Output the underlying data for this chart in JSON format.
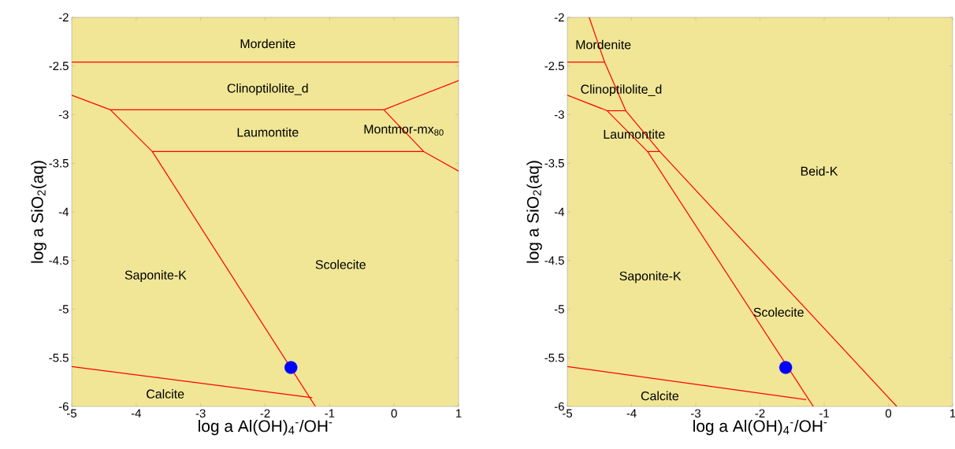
{
  "chart_data": [
    {
      "type": "line",
      "xlabel": "log a Al(OH)$_{4}$$^{-}$/OH$^{-}$",
      "ylabel": "log a SiO$_{2}$(aq)",
      "xlim": [
        -5,
        1
      ],
      "ylim": [
        -6,
        -2
      ],
      "xticks": [
        -5,
        -4,
        -3,
        -2,
        -1,
        0,
        1
      ],
      "yticks": [
        -6,
        -5.5,
        -5,
        -4.5,
        -4,
        -3.5,
        -3,
        -2.5,
        -2
      ],
      "grid": false,
      "series": [
        {
          "color": "#ff0000",
          "x": [
            -5,
            1
          ],
          "values": [
            -2.46,
            -2.46
          ]
        },
        {
          "color": "#ff0000",
          "x": [
            -5,
            -4.4,
            -0.16,
            1
          ],
          "values": [
            -2.8,
            -2.95,
            -2.95,
            -2.65
          ]
        },
        {
          "color": "#ff0000",
          "x": [
            -4.4,
            -3.75,
            -1.22
          ],
          "values": [
            -2.95,
            -3.38,
            -6
          ]
        },
        {
          "color": "#ff0000",
          "x": [
            -3.75,
            0.46
          ],
          "values": [
            -3.38,
            -3.38
          ]
        },
        {
          "color": "#ff0000",
          "x": [
            -0.16,
            0.46,
            1
          ],
          "values": [
            -2.95,
            -3.38,
            -3.58
          ]
        },
        {
          "color": "#ff0000",
          "x": [
            -5,
            -1.27
          ],
          "values": [
            -5.59,
            -5.91
          ]
        },
        {
          "type": "scatter",
          "marker": "circle",
          "color": "#0000ff",
          "x": [
            -1.6
          ],
          "values": [
            -5.6
          ]
        }
      ],
      "annotations": [
        "Mordenite",
        "Clinoptilolite_d",
        "Laumontite",
        "Montmor-mx$_{80}$",
        "Saponite-K",
        "Scolecite",
        "Calcite"
      ]
    },
    {
      "type": "line",
      "xlabel": "log a Al(OH)$_{4}$$^{-}$/OH$^{-}$",
      "ylabel": "log a SiO$_{2}$(aq)",
      "xlim": [
        -5,
        1
      ],
      "ylim": [
        -6,
        -2
      ],
      "xticks": [
        -5,
        -4,
        -3,
        -2,
        -1,
        0,
        1
      ],
      "yticks": [
        -6,
        -5.5,
        -5,
        -4.5,
        -4,
        -3.5,
        -3,
        -2.5,
        -2
      ],
      "grid": false,
      "series": [
        {
          "color": "#ff0000",
          "x": [
            -4.66,
            -4.42,
            -4.09,
            -3.56,
            0.13
          ],
          "values": [
            -2,
            -2.46,
            -2.96,
            -3.38,
            -6
          ]
        },
        {
          "color": "#ff0000",
          "x": [
            -5,
            -4.42
          ],
          "values": [
            -2.46,
            -2.46
          ]
        },
        {
          "color": "#ff0000",
          "x": [
            -5,
            -4.38,
            -3.75,
            -1.17
          ],
          "values": [
            -2.8,
            -2.96,
            -3.38,
            -6
          ]
        },
        {
          "color": "#ff0000",
          "x": [
            -4.38,
            -4.09
          ],
          "values": [
            -2.96,
            -2.96
          ]
        },
        {
          "color": "#ff0000",
          "x": [
            -3.75,
            -3.56
          ],
          "values": [
            -3.38,
            -3.38
          ]
        },
        {
          "color": "#ff0000",
          "x": [
            -5,
            -1.28
          ],
          "values": [
            -5.59,
            -5.93
          ]
        },
        {
          "type": "scatter",
          "marker": "circle",
          "color": "#0000ff",
          "x": [
            -1.6
          ],
          "values": [
            -5.6
          ]
        }
      ],
      "annotations": [
        "Mordenite",
        "Clinoptilolite_d",
        "Laumontite",
        "Beid-K",
        "Saponite-K",
        "Scolecite",
        "Calcite"
      ]
    }
  ]
}
